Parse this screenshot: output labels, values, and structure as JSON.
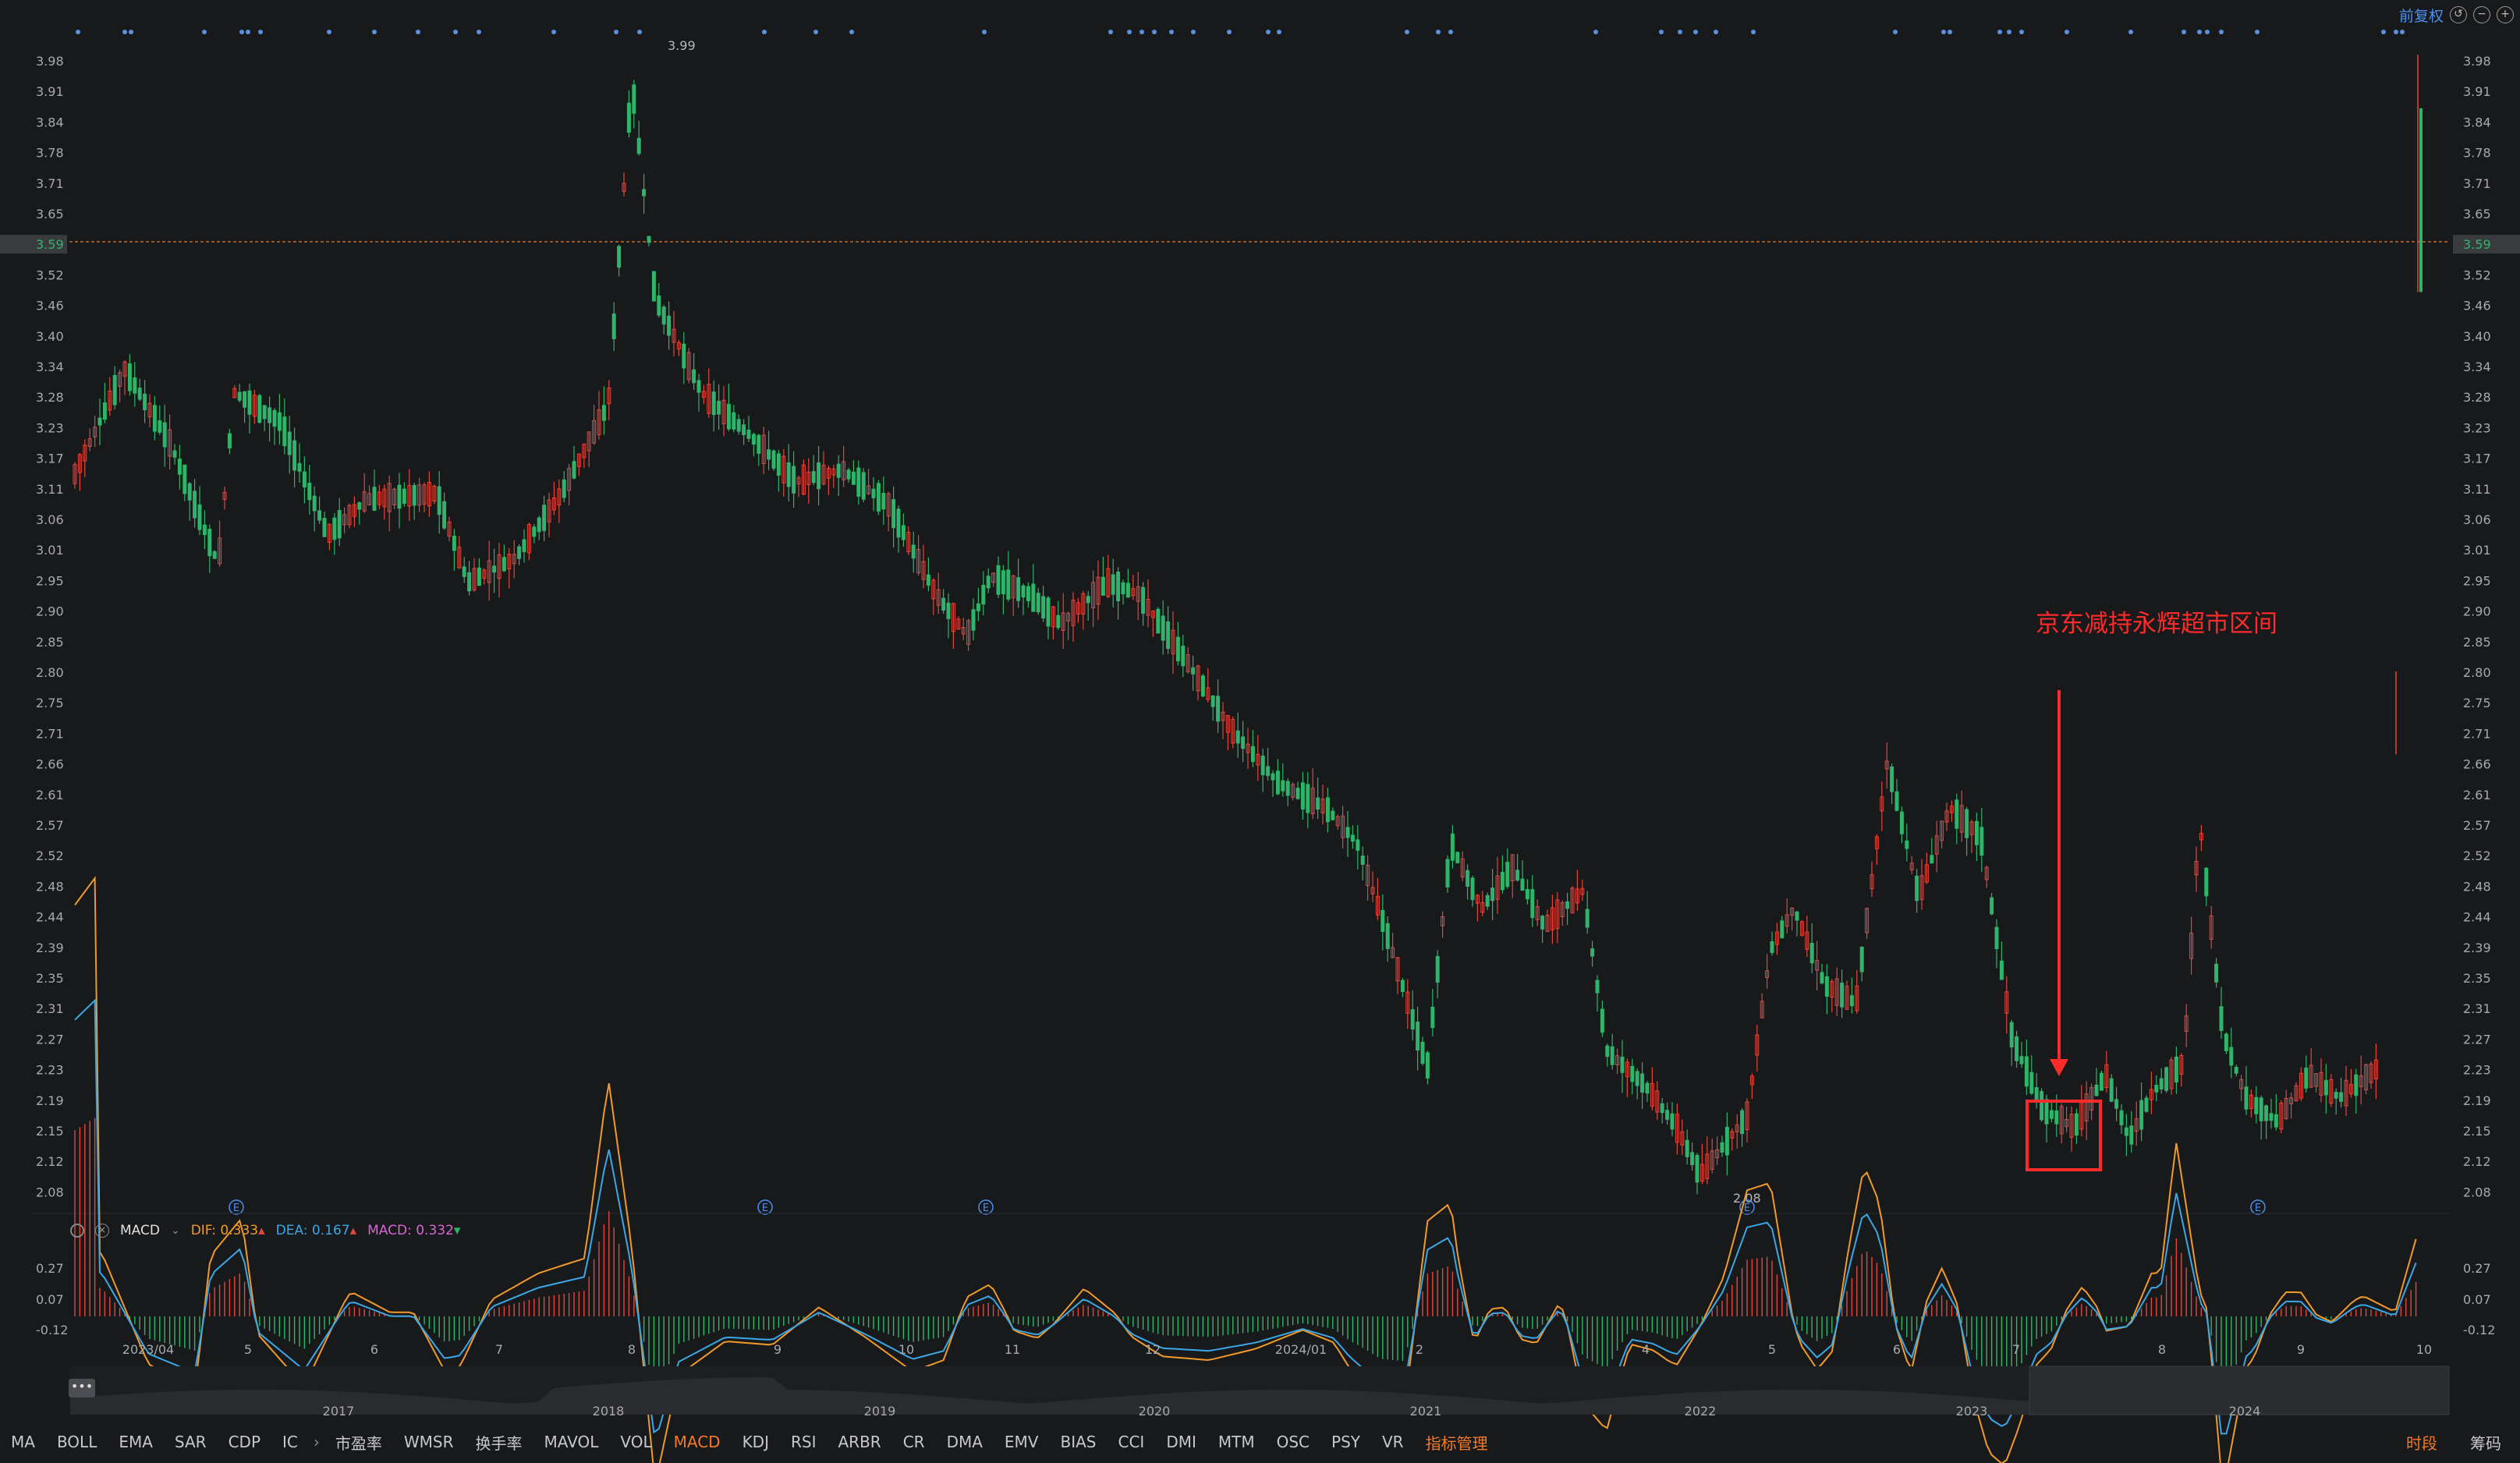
{
  "toolbar": {
    "adjust_label": "前复权",
    "icons": [
      "undo-icon",
      "minus-circle-icon",
      "plus-circle-icon"
    ]
  },
  "price_axis": {
    "ticks": [
      "3.98",
      "3.91",
      "3.84",
      "3.78",
      "3.71",
      "3.65",
      "3.59",
      "3.52",
      "3.46",
      "3.40",
      "3.34",
      "3.28",
      "3.23",
      "3.17",
      "3.11",
      "3.06",
      "3.01",
      "2.95",
      "2.90",
      "2.85",
      "2.80",
      "2.75",
      "2.71",
      "2.66",
      "2.61",
      "2.57",
      "2.52",
      "2.48",
      "2.44",
      "2.39",
      "2.35",
      "2.31",
      "2.27",
      "2.23",
      "2.19",
      "2.15",
      "2.12",
      "2.08"
    ],
    "current_price": "3.59"
  },
  "price_markers": {
    "high": "3.99",
    "low": "2.08"
  },
  "annotation": {
    "text": "京东减持永辉超市区间"
  },
  "macd_legend": {
    "name": "MACD",
    "dif_label": "DIF:",
    "dif_value": "0.333",
    "dea_label": "DEA:",
    "dea_value": "0.167",
    "macd_label": "MACD:",
    "macd_value": "0.332"
  },
  "macd_axis": {
    "ticks": [
      "0.27",
      "0.07",
      "-0.12"
    ]
  },
  "time_axis": {
    "labels": [
      "2023/04",
      "5",
      "6",
      "7",
      "8",
      "9",
      "10",
      "11",
      "12",
      "2024/01",
      "2",
      "4",
      "5",
      "6",
      "7",
      "8",
      "9",
      "10"
    ]
  },
  "navigator": {
    "years": [
      "2017",
      "2018",
      "2019",
      "2020",
      "2021",
      "2022",
      "2023",
      "2024"
    ],
    "handle": "•••"
  },
  "bottom_tabs": [
    "MA",
    "BOLL",
    "EMA",
    "SAR",
    "CDP",
    "IC",
    "市盈率",
    "WMSR",
    "换手率",
    "MAVOL",
    "VOL",
    "MACD",
    "KDJ",
    "RSI",
    "ARBR",
    "CR",
    "DMA",
    "EMV",
    "BIAS",
    "CCI",
    "DMI",
    "MTM",
    "OSC",
    "PSY",
    "VR",
    "指标管理"
  ],
  "active_tab": "MACD",
  "bottom_right": {
    "period": "时段",
    "chips": "筹码"
  },
  "colors": {
    "up": "#e2473d",
    "down": "#2fb56a",
    "dif": "#f09a2b",
    "dea": "#3aa7e6",
    "macd": "#d865d6",
    "accent": "#f27a2c",
    "annotation": "#ff2b2b"
  }
}
